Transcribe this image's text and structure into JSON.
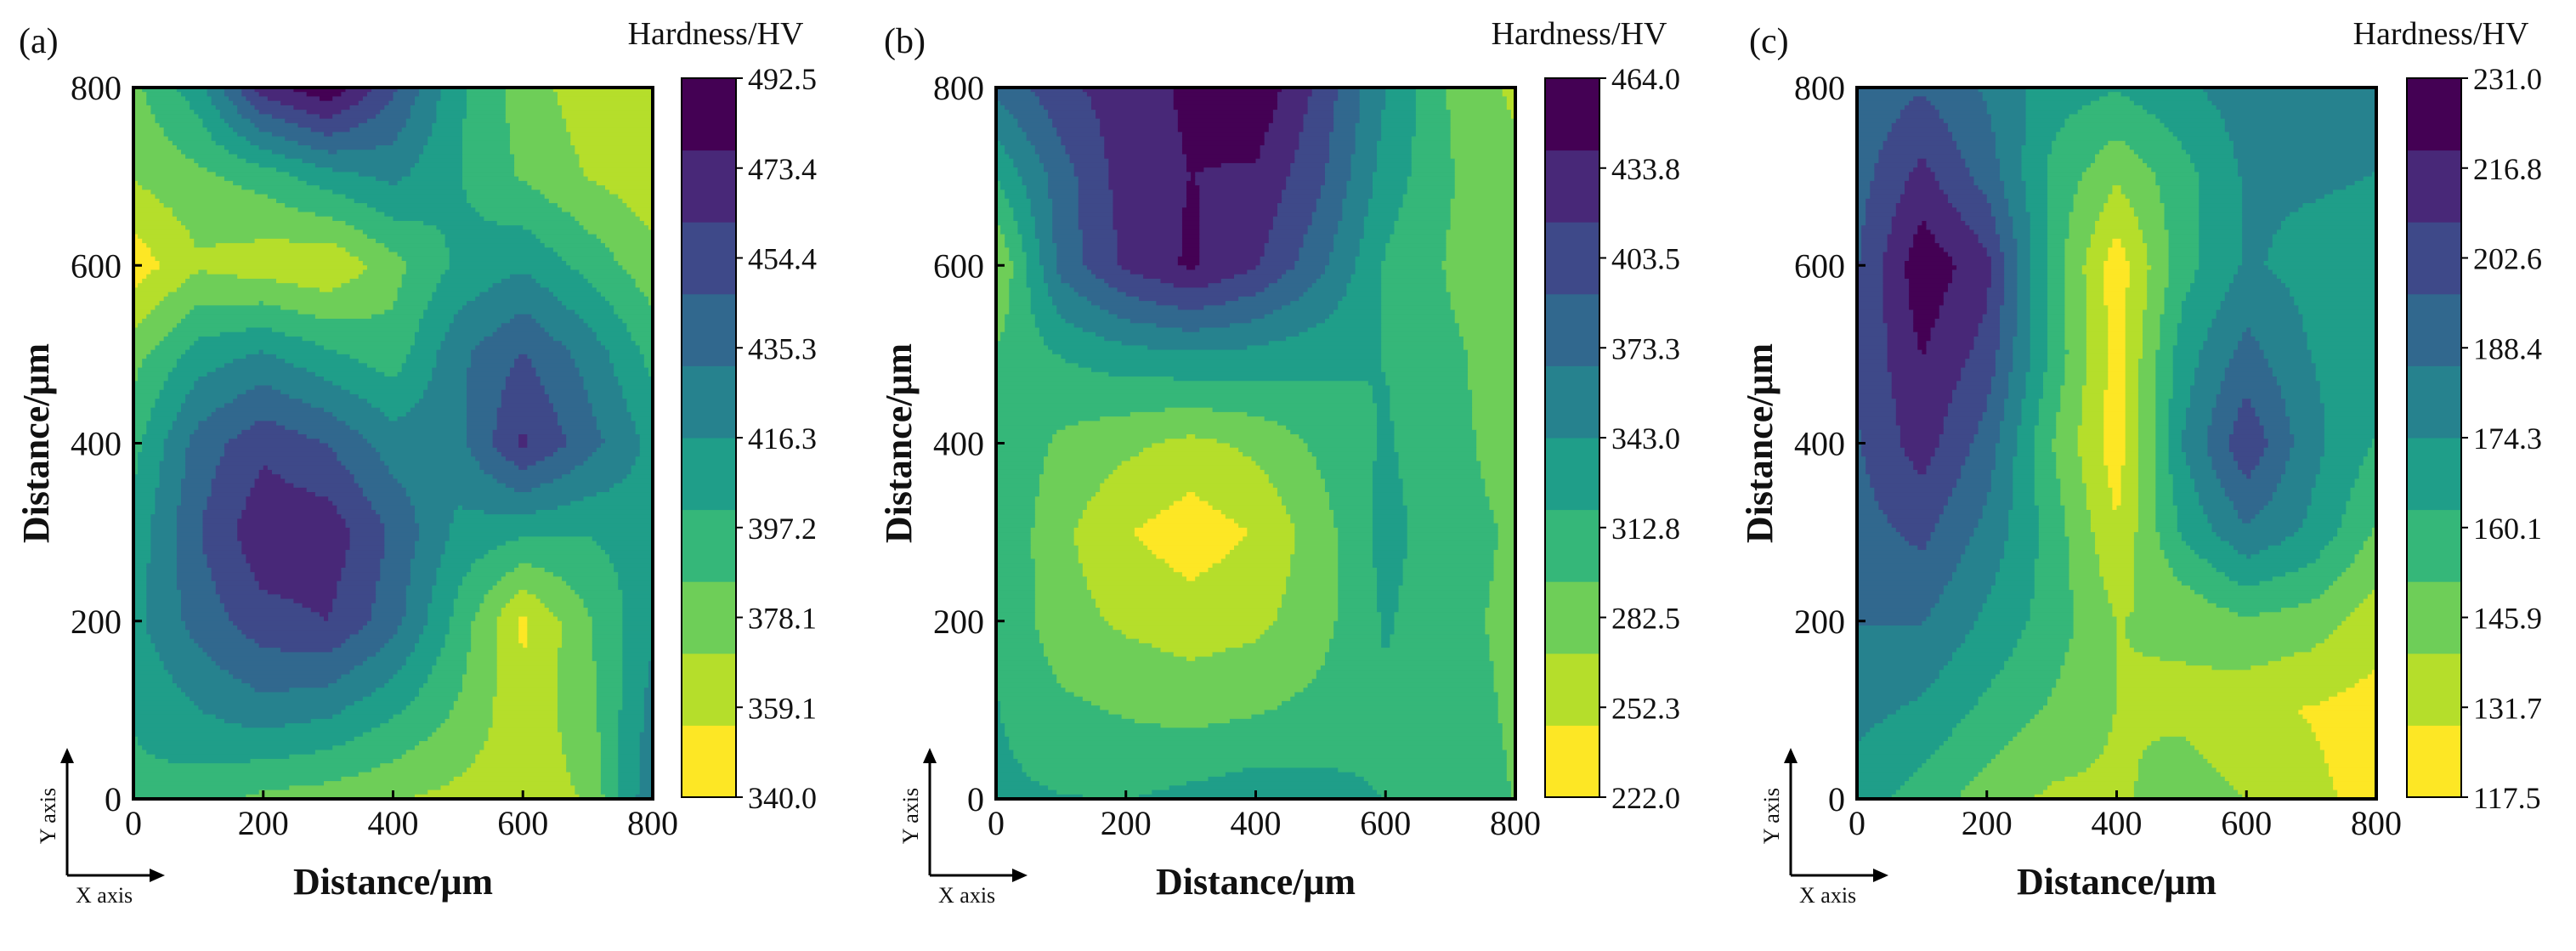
{
  "figure": {
    "colors": [
      "#fde725",
      "#b5de2b",
      "#6ece58",
      "#35b779",
      "#1f9e89",
      "#26828e",
      "#31688e",
      "#3e4989",
      "#482878",
      "#440154"
    ],
    "axis_symbol": {
      "x_label": "X axis",
      "y_label": "Y axis"
    }
  },
  "chart_data": [
    {
      "type": "heatmap",
      "subtype": "filled-contour",
      "panel_label": "(a)",
      "xlabel": "Distance/μm",
      "ylabel": "Distance/μm",
      "xlim": [
        0,
        800
      ],
      "ylim": [
        0,
        800
      ],
      "x_ticks": [
        "0",
        "200",
        "400",
        "600",
        "800"
      ],
      "y_ticks": [
        "0",
        "200",
        "400",
        "600",
        "800"
      ],
      "colorbar": {
        "title": "Hardness/HV",
        "ticks": [
          "340.0",
          "359.1",
          "378.1",
          "397.2",
          "416.3",
          "435.3",
          "454.4",
          "473.4",
          "492.5"
        ],
        "min": 340.0,
        "max": 492.5
      },
      "grid_x": [
        0,
        100,
        200,
        300,
        400,
        500,
        600,
        700,
        800
      ],
      "grid_y": [
        0,
        100,
        200,
        300,
        400,
        500,
        600,
        700,
        800
      ],
      "z": [
        [
          398,
          392,
          382,
          378,
          372,
          366,
          362,
          372,
          430
        ],
        [
          402,
          416,
          426,
          420,
          404,
          384,
          360,
          380,
          422
        ],
        [
          412,
          438,
          456,
          462,
          438,
          396,
          352,
          384,
          414
        ],
        [
          406,
          446,
          474,
          472,
          444,
          412,
          404,
          402,
          408
        ],
        [
          396,
          438,
          458,
          446,
          424,
          426,
          465,
          438,
          412
        ],
        [
          380,
          408,
          418,
          404,
          392,
          428,
          448,
          426,
          396
        ],
        [
          346,
          368,
          362,
          356,
          380,
          404,
          414,
          396,
          376
        ],
        [
          372,
          382,
          392,
          410,
          420,
          402,
          384,
          370,
          360
        ],
        [
          382,
          410,
          470,
          490,
          450,
          404,
          378,
          362,
          358
        ]
      ]
    },
    {
      "type": "heatmap",
      "subtype": "filled-contour",
      "panel_label": "(b)",
      "xlabel": "Distance/μm",
      "ylabel": "Distance/μm",
      "xlim": [
        0,
        800
      ],
      "ylim": [
        0,
        800
      ],
      "x_ticks": [
        "0",
        "200",
        "400",
        "600",
        "800"
      ],
      "y_ticks": [
        "0",
        "200",
        "400",
        "600",
        "800"
      ],
      "colorbar": {
        "title": "Hardness/HV",
        "ticks": [
          "222.0",
          "252.3",
          "282.5",
          "312.8",
          "343.0",
          "373.3",
          "403.5",
          "433.8",
          "464.0"
        ],
        "min": 222.0,
        "max": 464.0
      },
      "grid_x": [
        0,
        100,
        200,
        300,
        400,
        500,
        600,
        700,
        800
      ],
      "grid_y": [
        0,
        100,
        200,
        300,
        400,
        500,
        600,
        700,
        800
      ],
      "z": [
        [
          324,
          320,
          318,
          326,
          334,
          328,
          318,
          304,
          294
        ],
        [
          320,
          300,
          292,
          286,
          292,
          302,
          314,
          302,
          292
        ],
        [
          316,
          280,
          266,
          258,
          264,
          286,
          322,
          300,
          290
        ],
        [
          318,
          276,
          248,
          232,
          248,
          284,
          328,
          302,
          292
        ],
        [
          316,
          290,
          276,
          264,
          276,
          300,
          322,
          300,
          286
        ],
        [
          298,
          320,
          334,
          340,
          336,
          326,
          318,
          298,
          284
        ],
        [
          268,
          376,
          420,
          444,
          418,
          374,
          316,
          292,
          282
        ],
        [
          320,
          380,
          428,
          440,
          436,
          396,
          332,
          296,
          280
        ],
        [
          374,
          408,
          430,
          444,
          460,
          408,
          344,
          292,
          264
        ]
      ]
    },
    {
      "type": "heatmap",
      "subtype": "filled-contour",
      "panel_label": "(c)",
      "xlabel": "Distance/μm",
      "ylabel": "Distance/μm",
      "xlim": [
        0,
        800
      ],
      "ylim": [
        0,
        800
      ],
      "x_ticks": [
        "0",
        "200",
        "400",
        "600",
        "800"
      ],
      "y_ticks": [
        "0",
        "200",
        "400",
        "600",
        "800"
      ],
      "colorbar": {
        "title": "Hardness/HV",
        "ticks": [
          "117.5",
          "131.7",
          "145.9",
          "160.1",
          "174.3",
          "188.4",
          "202.6",
          "216.8",
          "231.0"
        ],
        "min": 117.5,
        "max": 231.0
      },
      "grid_x": [
        0,
        100,
        200,
        300,
        400,
        500,
        600,
        700,
        800
      ],
      "grid_y": [
        0,
        100,
        200,
        300,
        400,
        500,
        600,
        700,
        800
      ],
      "z": [
        [
          168,
          158,
          146,
          138,
          138,
          146,
          140,
          132,
          124
        ],
        [
          178,
          172,
          160,
          150,
          140,
          138,
          132,
          128,
          124
        ],
        [
          186,
          186,
          172,
          158,
          140,
          142,
          150,
          146,
          134
        ],
        [
          192,
          200,
          182,
          158,
          130,
          164,
          184,
          172,
          150
        ],
        [
          196,
          214,
          192,
          152,
          122,
          174,
          206,
          178,
          162
        ],
        [
          198,
          220,
          204,
          160,
          124,
          168,
          190,
          174,
          168
        ],
        [
          196,
          228,
          212,
          158,
          122,
          158,
          176,
          170,
          168
        ],
        [
          192,
          212,
          192,
          160,
          142,
          158,
          176,
          176,
          174
        ],
        [
          188,
          196,
          184,
          168,
          164,
          172,
          180,
          182,
          180
        ]
      ]
    }
  ]
}
